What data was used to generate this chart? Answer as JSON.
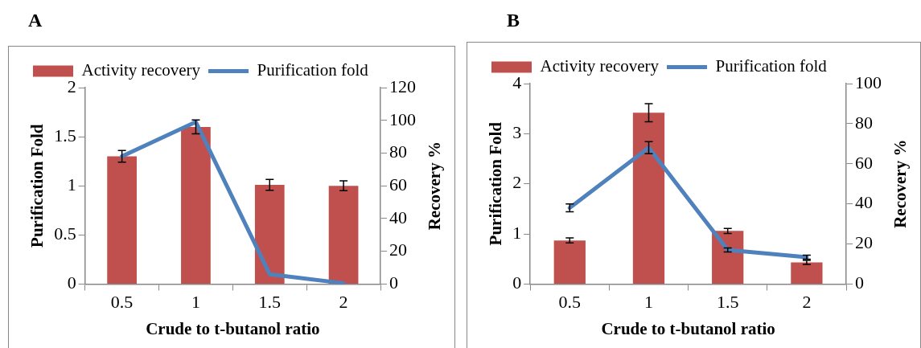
{
  "chart_data": [
    {
      "type": "bar",
      "title": "A",
      "categories": [
        "0.5",
        "1",
        "1.5",
        "2"
      ],
      "xlabel": "Crude to t-butanol ratio",
      "ylabel": "Purification Fold",
      "y2label": "Recovery %",
      "ylim": [
        0,
        2
      ],
      "yticks": [
        0,
        0.5,
        1,
        1.5,
        2
      ],
      "y2lim": [
        0,
        120
      ],
      "y2ticks": [
        0,
        20,
        40,
        60,
        80,
        100,
        120
      ],
      "legend": "top left",
      "grid": false,
      "series": [
        {
          "name": "Activity recovery",
          "color": "#c0504d",
          "values": [
            1.3,
            1.6,
            1.01,
            1.0
          ],
          "errors": [
            0.06,
            0.07,
            0.055,
            0.05
          ]
        },
        {
          "name": "Purification fold",
          "type": "line",
          "axis": "y2",
          "color": "#4f81bd",
          "values": [
            78,
            99,
            6,
            0.5
          ]
        }
      ]
    },
    {
      "type": "bar",
      "title": "B",
      "categories": [
        "0.5",
        "1",
        "1.5",
        "2"
      ],
      "xlabel": "Crude to t-butanol ratio",
      "ylabel": "Purification Fold",
      "y2label": "Recovery %",
      "ylim": [
        0,
        4
      ],
      "yticks": [
        0,
        1,
        2,
        3,
        4
      ],
      "y2lim": [
        0,
        100
      ],
      "y2ticks": [
        0,
        20,
        40,
        60,
        80,
        100
      ],
      "legend": "top left",
      "grid": false,
      "series": [
        {
          "name": "Activity recovery",
          "color": "#c0504d",
          "values": [
            0.87,
            3.42,
            1.06,
            0.43
          ],
          "errors": [
            0.05,
            0.18,
            0.05,
            0.04
          ]
        },
        {
          "name": "Purification fold",
          "type": "line",
          "axis": "y2",
          "color": "#4f81bd",
          "values": [
            38,
            68,
            17,
            13.4
          ],
          "errors": [
            2,
            3,
            1,
            1
          ]
        }
      ]
    }
  ]
}
